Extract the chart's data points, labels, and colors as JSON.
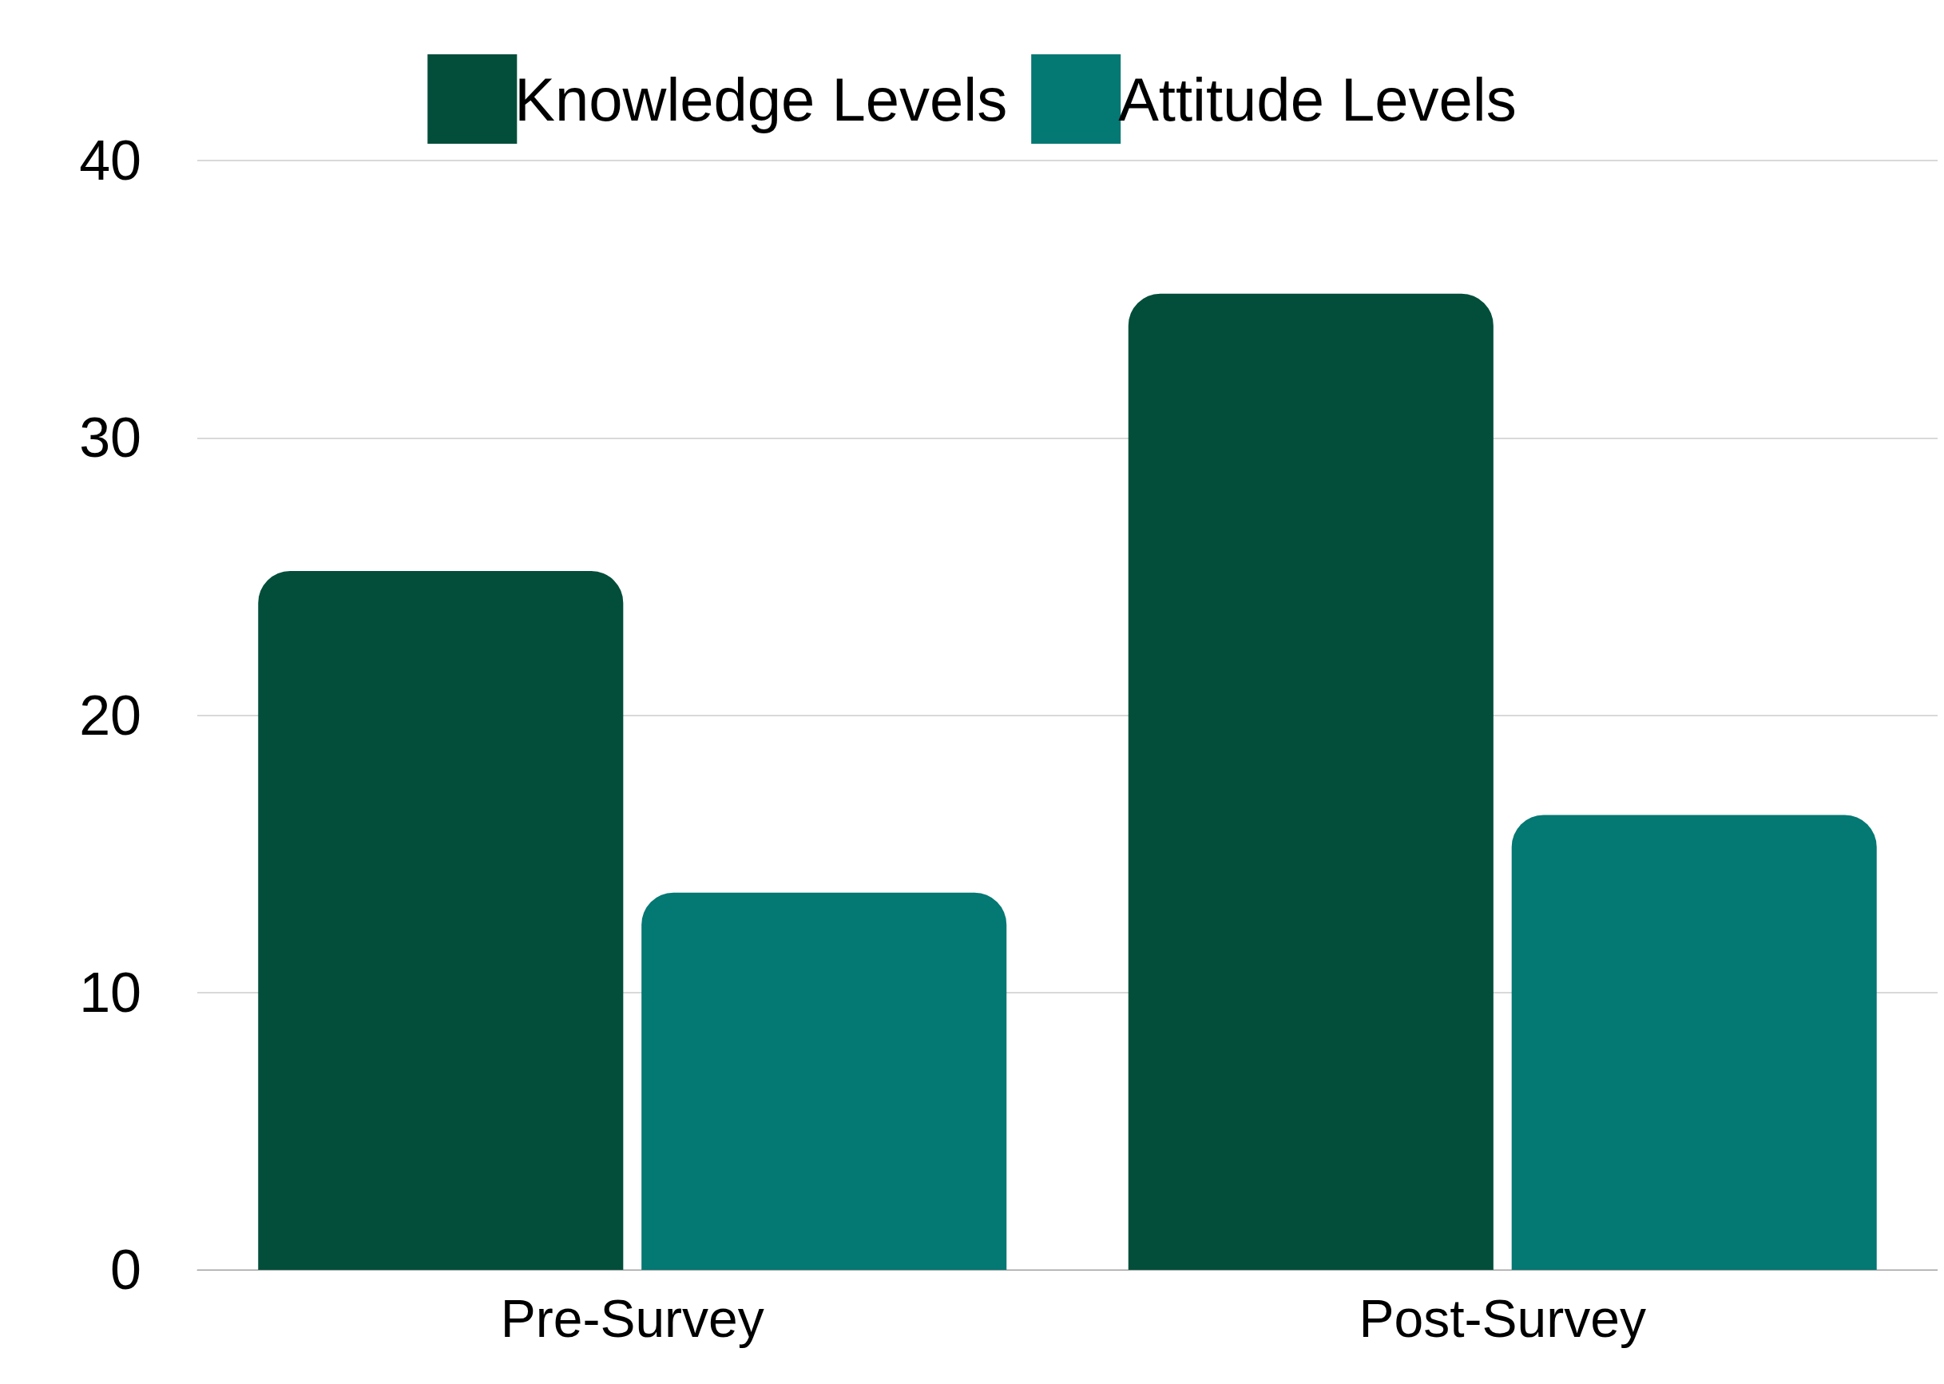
{
  "chart_data": {
    "type": "bar",
    "categories": [
      "Pre-Survey",
      "Post-Survey"
    ],
    "series": [
      {
        "name": "Knowledge Levels",
        "color": "#024e3a",
        "values": [
          25.2,
          35.2
        ]
      },
      {
        "name": "Attitude Levels",
        "color": "#047873",
        "values": [
          13.6,
          16.4
        ]
      }
    ],
    "ylim": [
      0,
      40
    ],
    "yticks": [
      0,
      10,
      20,
      30,
      40
    ],
    "grid": "y",
    "legend": "top"
  }
}
